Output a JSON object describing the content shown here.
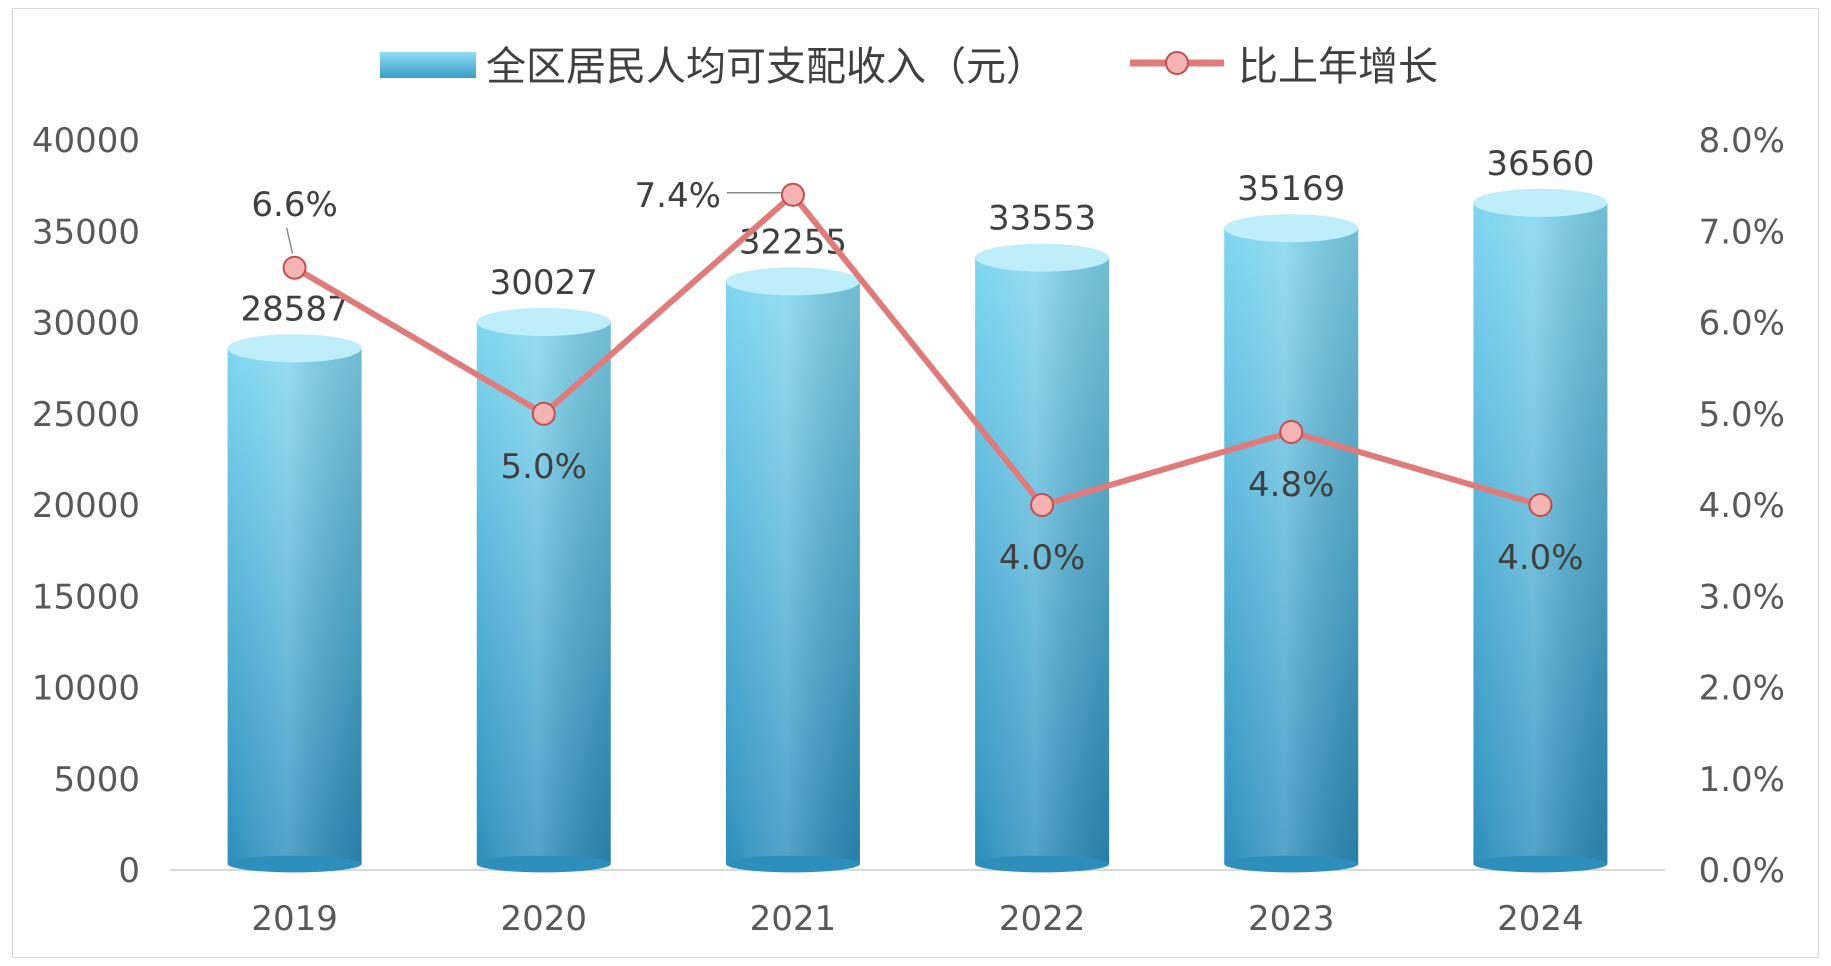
{
  "colors": {
    "bar_light": "#7fd6f0",
    "bar_dark": "#2e8fbd",
    "bar_top": "#bfeefb",
    "line": "#e07b7b",
    "marker_fill": "#f6b3b3",
    "marker_stroke": "#c0504d",
    "axis": "#d9d9d9"
  },
  "chart_data": {
    "type": "bar",
    "categories": [
      "2019",
      "2020",
      "2021",
      "2022",
      "2023",
      "2024"
    ],
    "series": [
      {
        "name": "全区居民人均可支配收入（元）",
        "type": "bar",
        "axis": "left",
        "values": [
          28587,
          30027,
          32255,
          33553,
          35169,
          36560
        ],
        "labels": [
          "28587",
          "30027",
          "32255",
          "33553",
          "35169",
          "36560"
        ]
      },
      {
        "name": "比上年增长",
        "type": "line",
        "axis": "right",
        "values": [
          6.6,
          5.0,
          7.4,
          4.0,
          4.8,
          4.0
        ],
        "labels": [
          "6.6%",
          "5.0%",
          "7.4%",
          "4.0%",
          "4.8%",
          "4.0%"
        ]
      }
    ],
    "left_axis": {
      "range": [
        0,
        40000
      ],
      "ticks": [
        "0",
        "5000",
        "10000",
        "15000",
        "20000",
        "25000",
        "30000",
        "35000",
        "40000"
      ]
    },
    "right_axis": {
      "range": [
        0,
        8
      ],
      "ticks": [
        "0.0%",
        "1.0%",
        "2.0%",
        "3.0%",
        "4.0%",
        "5.0%",
        "6.0%",
        "7.0%",
        "8.0%"
      ]
    },
    "grid": false,
    "legend": "top-center"
  }
}
